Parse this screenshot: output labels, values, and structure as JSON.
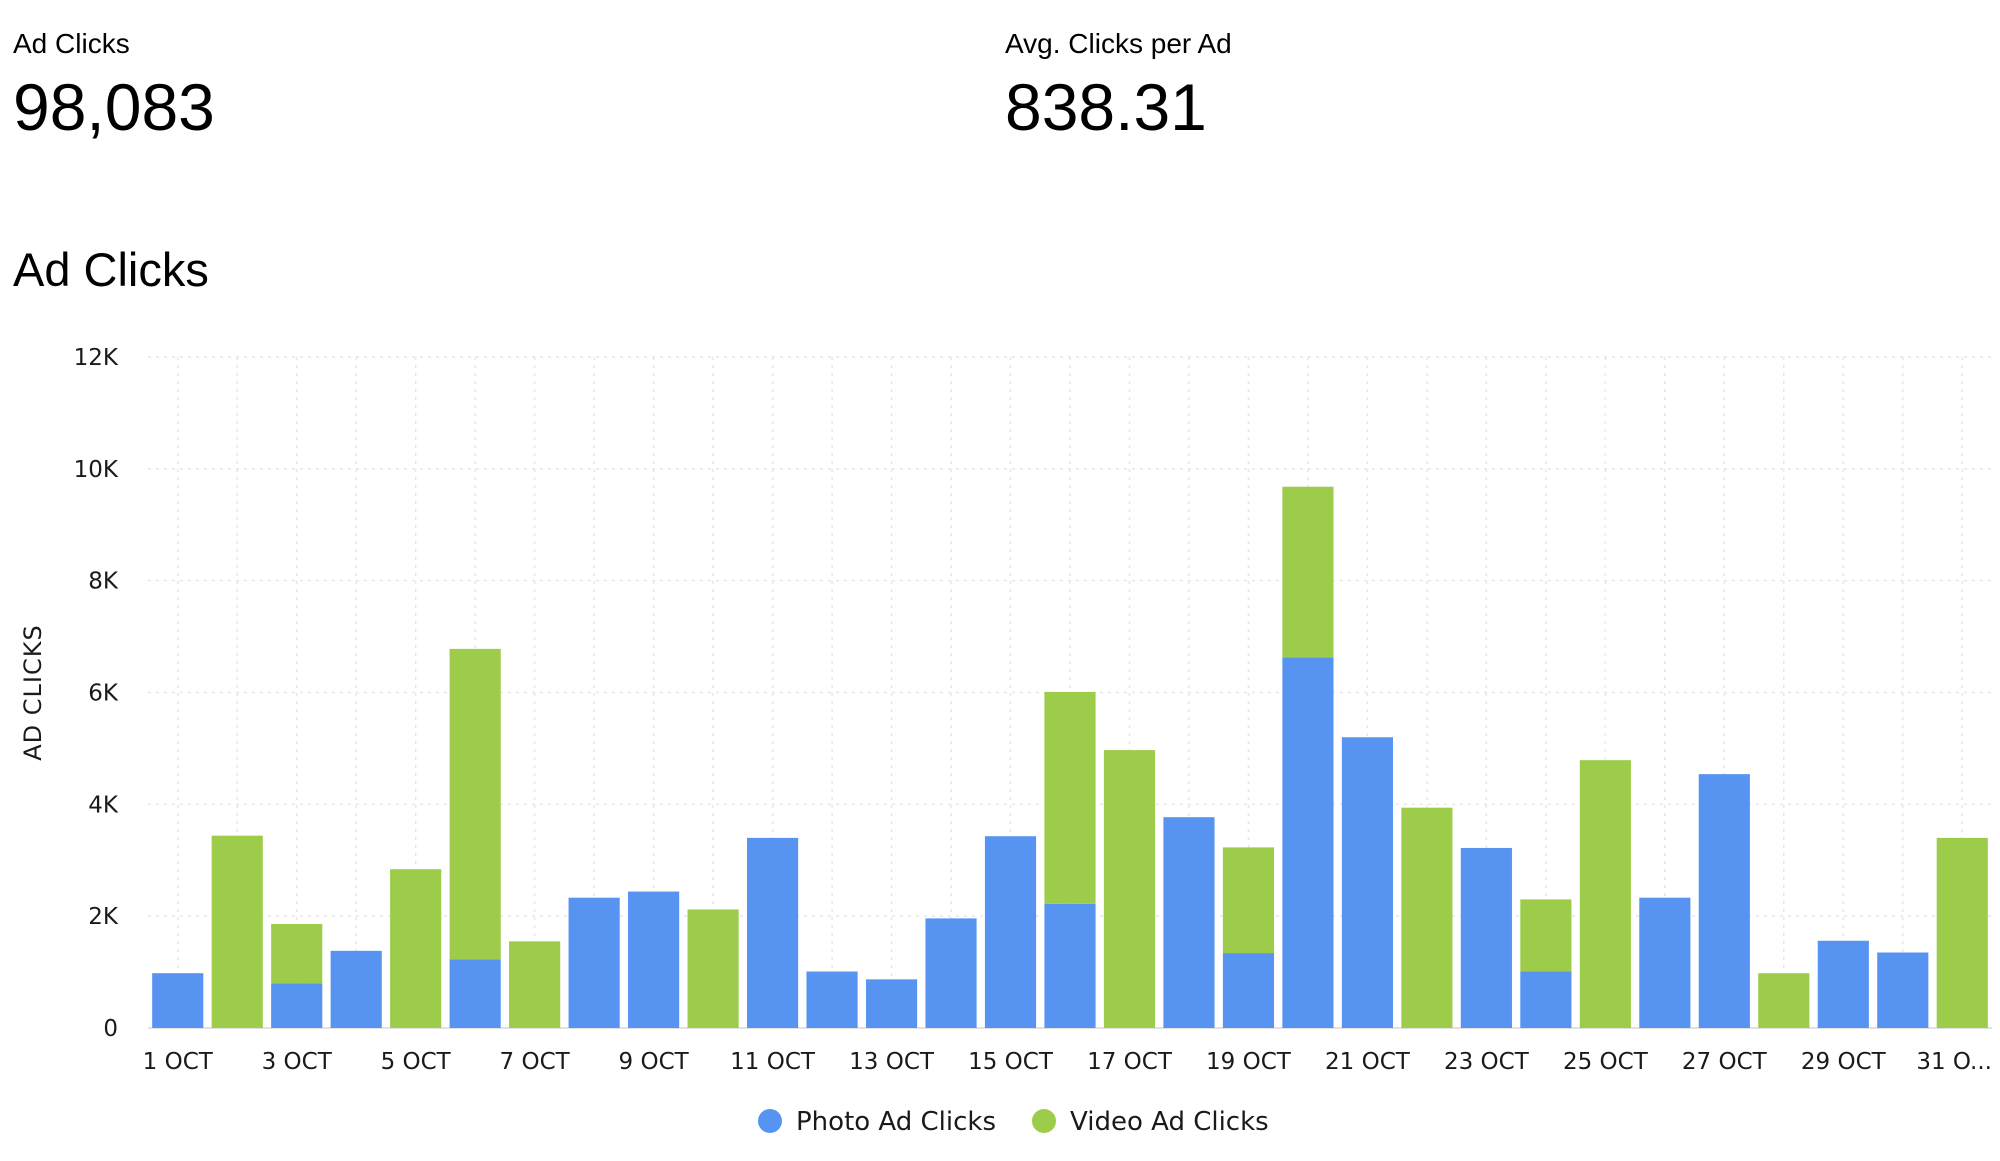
{
  "kpis": {
    "ad_clicks": {
      "label": "Ad Clicks",
      "value": "98,083"
    },
    "avg_clicks": {
      "label": "Avg. Clicks per Ad",
      "value": "838.31"
    }
  },
  "colors": {
    "photo": "#5794f2",
    "video": "#9dcc4b",
    "grid": "#e6e6e6"
  },
  "chart_data": {
    "type": "bar",
    "stacked": true,
    "title": "Ad Clicks",
    "xlabel": "",
    "ylabel": "AD CLICKS",
    "ylim": [
      0,
      12000
    ],
    "yticks": [
      0,
      2000,
      4000,
      6000,
      8000,
      10000,
      12000
    ],
    "ytick_labels": [
      "0",
      "2K",
      "4K",
      "6K",
      "8K",
      "10K",
      "12K"
    ],
    "categories": [
      "1 OCT",
      "2 OCT",
      "3 OCT",
      "4 OCT",
      "5 OCT",
      "6 OCT",
      "7 OCT",
      "8 OCT",
      "9 OCT",
      "10 OCT",
      "11 OCT",
      "12 OCT",
      "13 OCT",
      "14 OCT",
      "15 OCT",
      "16 OCT",
      "17 OCT",
      "18 OCT",
      "19 OCT",
      "20 OCT",
      "21 OCT",
      "22 OCT",
      "23 OCT",
      "24 OCT",
      "25 OCT",
      "26 OCT",
      "27 OCT",
      "28 OCT",
      "29 OCT",
      "30 OCT",
      "31 OCT"
    ],
    "xtick_labels": [
      "1 OCT",
      "3 OCT",
      "5 OCT",
      "7 OCT",
      "9 OCT",
      "11 OCT",
      "13 OCT",
      "15 OCT",
      "17 OCT",
      "19 OCT",
      "21 OCT",
      "23 OCT",
      "25 OCT",
      "27 OCT",
      "29 OCT",
      "31 O..."
    ],
    "grid": true,
    "legend_position": "bottom",
    "series": [
      {
        "name": "Photo Ad Clicks",
        "values": [
          980,
          0,
          800,
          1380,
          0,
          1230,
          0,
          2330,
          2440,
          0,
          3400,
          1010,
          870,
          1960,
          3430,
          2220,
          0,
          3770,
          1340,
          6630,
          5200,
          0,
          3220,
          1010,
          0,
          2330,
          4540,
          0,
          1560,
          1350,
          0
        ]
      },
      {
        "name": "Video Ad Clicks",
        "values": [
          0,
          3440,
          1060,
          0,
          2840,
          5550,
          1550,
          0,
          0,
          2120,
          0,
          0,
          0,
          0,
          0,
          3790,
          4970,
          0,
          1890,
          3050,
          0,
          3940,
          0,
          1290,
          4790,
          0,
          0,
          980,
          0,
          0,
          3400
        ]
      }
    ]
  }
}
